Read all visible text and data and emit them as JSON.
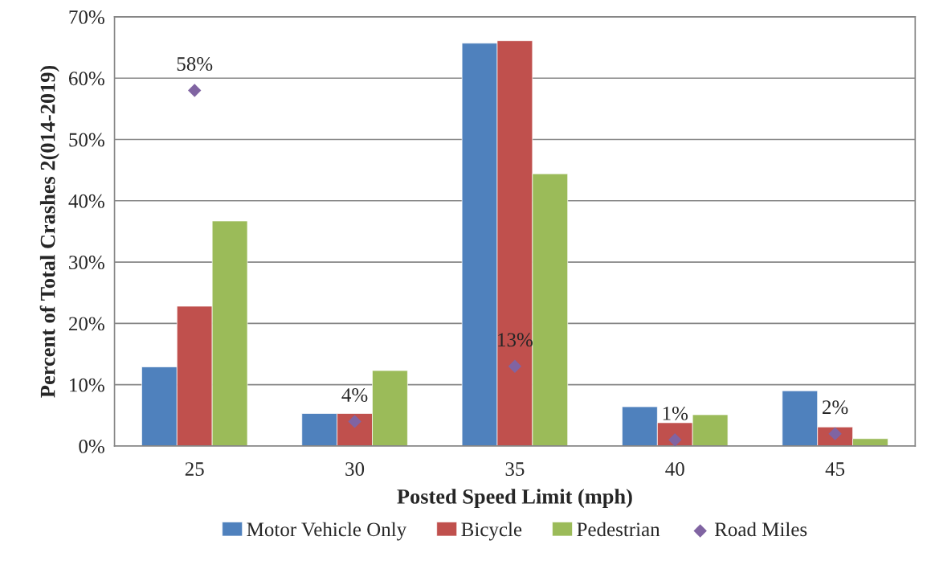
{
  "chart_data": {
    "type": "bar",
    "xlabel": "Posted Speed Limit (mph)",
    "ylabel": "Percent of Total Crashes 2(014-2019)",
    "categories": [
      "25",
      "30",
      "35",
      "40",
      "45"
    ],
    "series": [
      {
        "name": "Motor Vehicle Only",
        "color": "#4f81bd",
        "values": [
          12.9,
          5.3,
          65.7,
          6.4,
          9.0
        ]
      },
      {
        "name": "Bicycle",
        "color": "#c0504d",
        "values": [
          22.8,
          5.3,
          66.1,
          3.8,
          3.1
        ]
      },
      {
        "name": "Pedestrian",
        "color": "#9bbb59",
        "values": [
          36.7,
          12.3,
          44.4,
          5.1,
          1.2
        ]
      },
      {
        "name": "Road Miles",
        "type": "scatter",
        "color": "#8064a2",
        "marker": "diamond",
        "values": [
          58,
          4,
          13,
          1,
          2
        ],
        "value_labels": [
          "58%",
          "4%",
          "13%",
          "1%",
          "2%"
        ]
      }
    ],
    "ylim": [
      0,
      70
    ],
    "yticks": [
      {
        "value": 0,
        "label": "0%"
      },
      {
        "value": 10,
        "label": "10%"
      },
      {
        "value": 20,
        "label": "20%"
      },
      {
        "value": 30,
        "label": "30%"
      },
      {
        "value": 40,
        "label": "40%"
      },
      {
        "value": 50,
        "label": "50%"
      },
      {
        "value": 60,
        "label": "60%"
      },
      {
        "value": 70,
        "label": "70%"
      }
    ],
    "grid": "y",
    "legend": "bottom"
  }
}
